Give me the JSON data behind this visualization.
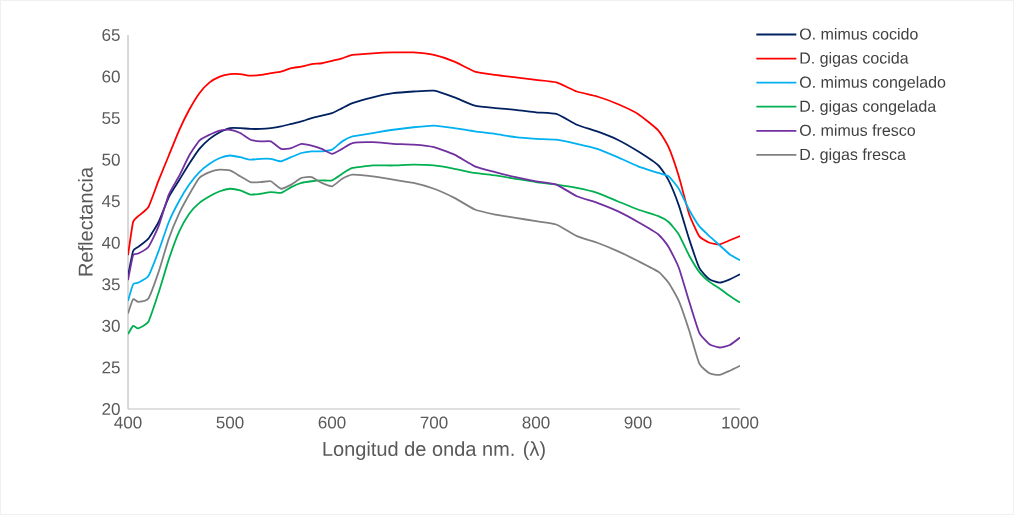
{
  "chart_data": {
    "type": "line",
    "xlabel": "Longitud de onda nm. (λ)",
    "ylabel": "Reflectancia",
    "x": [
      400,
      405,
      410,
      420,
      430,
      440,
      450,
      460,
      470,
      480,
      490,
      500,
      510,
      520,
      530,
      540,
      550,
      560,
      570,
      580,
      590,
      600,
      610,
      620,
      640,
      660,
      680,
      700,
      720,
      740,
      760,
      780,
      800,
      820,
      840,
      860,
      880,
      900,
      920,
      930,
      940,
      950,
      960,
      970,
      980,
      990,
      1000
    ],
    "series": [
      {
        "name": "O. mimus cocido",
        "color": "#002060",
        "values": [
          36,
          39,
          39.5,
          40.5,
          42.5,
          45.5,
          47.5,
          49.5,
          51.3,
          52.5,
          53.3,
          53.8,
          53.8,
          53.7,
          53.7,
          53.8,
          54,
          54.3,
          54.6,
          55,
          55.3,
          55.6,
          56.2,
          56.8,
          57.5,
          58,
          58.2,
          58.3,
          57.5,
          56.5,
          56.2,
          56,
          55.7,
          55.5,
          54.2,
          53.4,
          52.4,
          51,
          49.3,
          47.5,
          44.5,
          40.5,
          37,
          35.6,
          35.2,
          35.6,
          36.2
        ]
      },
      {
        "name": "D. gigas cocida",
        "color": "#ff0000",
        "values": [
          38.5,
          42.5,
          43.2,
          44.3,
          47.5,
          50.5,
          53.5,
          56,
          58,
          59.3,
          60,
          60.3,
          60.3,
          60.1,
          60.2,
          60.4,
          60.6,
          61,
          61.2,
          61.5,
          61.6,
          61.9,
          62.2,
          62.6,
          62.8,
          62.9,
          62.9,
          62.6,
          61.8,
          60.6,
          60.2,
          59.9,
          59.6,
          59.3,
          58.2,
          57.6,
          56.7,
          55.5,
          53.5,
          51.5,
          48,
          43.5,
          40.8,
          40,
          39.8,
          40.3,
          40.8
        ]
      },
      {
        "name": "O. mimus congelado",
        "color": "#00b0f0",
        "values": [
          33,
          35,
          35.2,
          36,
          39,
          42.5,
          45,
          47,
          48.5,
          49.5,
          50.2,
          50.5,
          50.3,
          50,
          50.1,
          50.1,
          49.8,
          50.3,
          50.8,
          51,
          51,
          51.2,
          52.2,
          52.8,
          53.2,
          53.6,
          53.9,
          54.1,
          53.8,
          53.4,
          53.1,
          52.7,
          52.5,
          52.4,
          51.9,
          51.3,
          50.3,
          49.2,
          48.4,
          48,
          46.5,
          44,
          42,
          40.8,
          39.7,
          38.6,
          37.9
        ]
      },
      {
        "name": "D. gigas congelada",
        "color": "#00b050",
        "values": [
          29,
          30,
          29.7,
          30.5,
          34,
          38,
          41.3,
          43.5,
          44.8,
          45.6,
          46.2,
          46.5,
          46.3,
          45.8,
          45.9,
          46.1,
          46,
          46.7,
          47.2,
          47.4,
          47.5,
          47.5,
          48.3,
          49,
          49.3,
          49.3,
          49.4,
          49.3,
          48.9,
          48.4,
          48.1,
          47.7,
          47.3,
          47,
          46.6,
          46,
          45,
          44,
          43.2,
          42.5,
          41,
          38.5,
          36.5,
          35.3,
          34.5,
          33.6,
          32.8
        ]
      },
      {
        "name": "O. mimus fresco",
        "color": "#7030a0",
        "values": [
          35.5,
          38.5,
          38.7,
          39.5,
          42,
          45.8,
          48,
          50.5,
          52.3,
          53,
          53.5,
          53.6,
          53.2,
          52.4,
          52.2,
          52.2,
          51.3,
          51.4,
          51.9,
          51.7,
          51.3,
          50.7,
          51.3,
          52,
          52.1,
          51.9,
          51.8,
          51.5,
          50.6,
          49.2,
          48.5,
          47.9,
          47.4,
          47,
          45.6,
          44.8,
          43.8,
          42.5,
          41,
          39.5,
          37,
          33,
          29.2,
          27.8,
          27.4,
          27.7,
          28.6
        ]
      },
      {
        "name": "D. gigas fresca",
        "color": "#808080",
        "values": [
          31.5,
          33.2,
          32.9,
          33.3,
          36.5,
          40.5,
          43.5,
          45.8,
          47.8,
          48.5,
          48.8,
          48.7,
          48,
          47.3,
          47.3,
          47.4,
          46.5,
          47,
          47.8,
          47.9,
          47.2,
          46.8,
          47.7,
          48.2,
          48,
          47.6,
          47.2,
          46.5,
          45.4,
          44,
          43.4,
          43,
          42.6,
          42.2,
          40.8,
          40,
          39,
          37.8,
          36.5,
          35.2,
          33,
          29.5,
          25.5,
          24.3,
          24.1,
          24.6,
          25.2
        ]
      }
    ],
    "xlim": [
      400,
      1000
    ],
    "xticks": [
      400,
      500,
      600,
      700,
      800,
      900,
      1000
    ],
    "ylim": [
      20,
      65
    ],
    "yticks": [
      20,
      25,
      30,
      35,
      40,
      45,
      50,
      55,
      60,
      65
    ],
    "legend": "right",
    "grid": false,
    "marker": "none",
    "line_style": "solid"
  }
}
